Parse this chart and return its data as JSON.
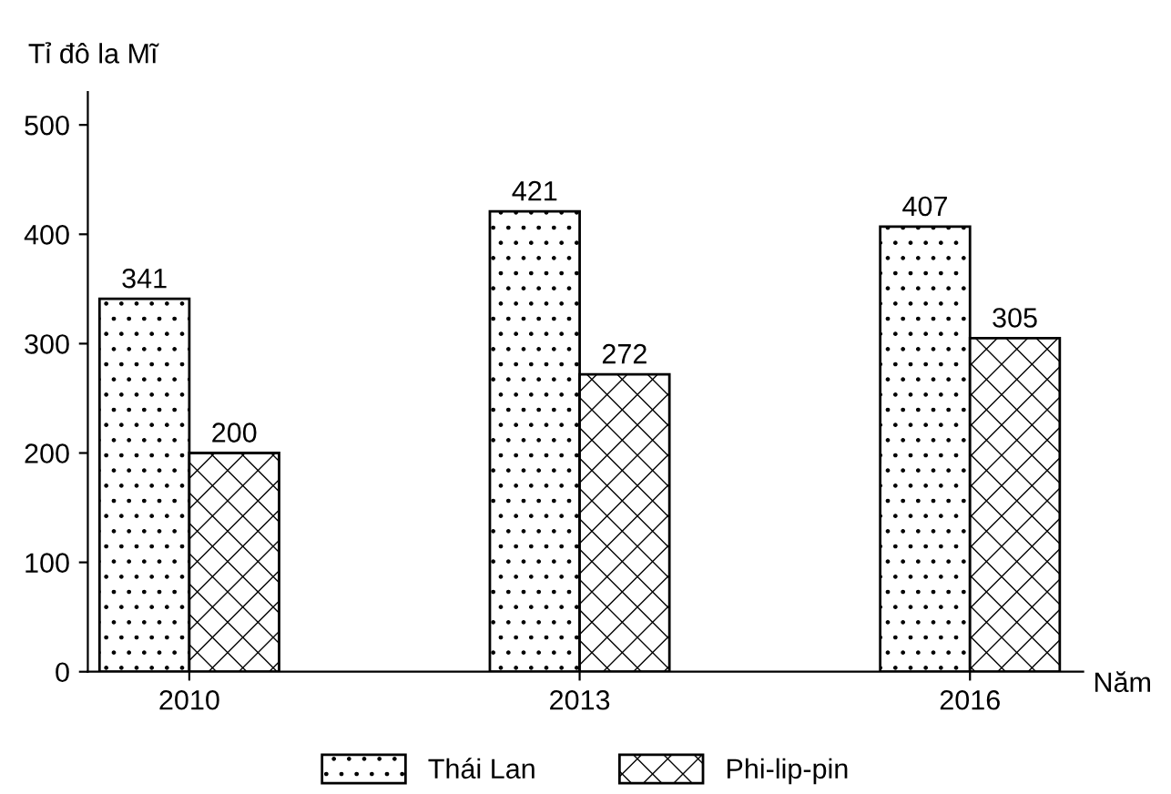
{
  "chart_data": {
    "type": "bar",
    "ylabel": "Tỉ đô la Mĩ",
    "xlabel": "Năm",
    "categories": [
      "2010",
      "2013",
      "2016"
    ],
    "series": [
      {
        "name": "Thái Lan",
        "color": "#000000",
        "values": [
          341,
          421,
          407
        ]
      },
      {
        "name": "Phi-lip-pin",
        "color": "#000000",
        "values": [
          200,
          272,
          305
        ]
      }
    ],
    "ylim": [
      0,
      530
    ],
    "yticks": [
      0,
      100,
      200,
      300,
      400,
      500
    ],
    "grid": false,
    "legend": "bottom",
    "data_labels": true
  }
}
